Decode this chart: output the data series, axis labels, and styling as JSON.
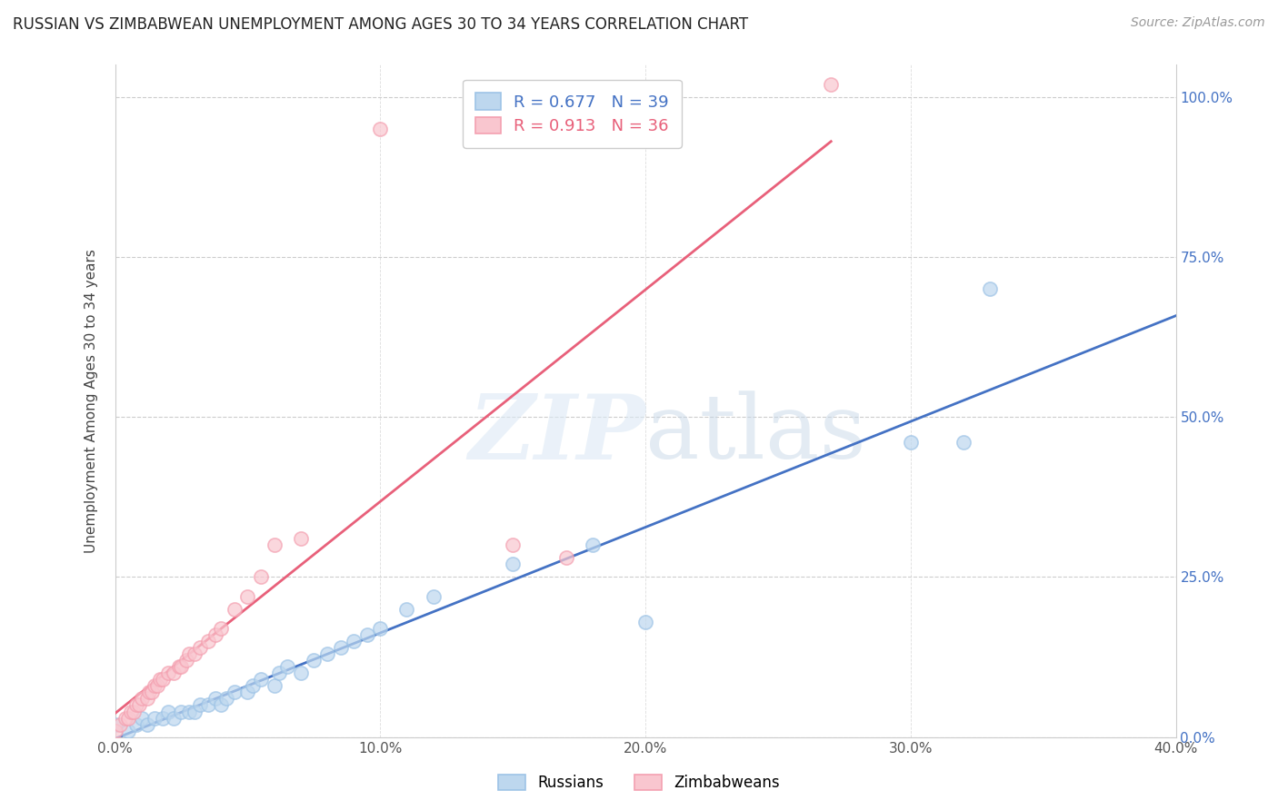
{
  "title": "RUSSIAN VS ZIMBABWEAN UNEMPLOYMENT AMONG AGES 30 TO 34 YEARS CORRELATION CHART",
  "source": "Source: ZipAtlas.com",
  "ylabel": "Unemployment Among Ages 30 to 34 years",
  "background_color": "#ffffff",
  "watermark_zip": "ZIP",
  "watermark_atlas": "atlas",
  "xlim": [
    0.0,
    0.4
  ],
  "ylim": [
    0.0,
    1.05
  ],
  "xticks": [
    0.0,
    0.1,
    0.2,
    0.3,
    0.4
  ],
  "xtick_labels": [
    "0.0%",
    "10.0%",
    "20.0%",
    "30.0%",
    "40.0%"
  ],
  "yticks": [
    0.0,
    0.25,
    0.5,
    0.75,
    1.0
  ],
  "ytick_labels": [
    "0.0%",
    "25.0%",
    "50.0%",
    "75.0%",
    "100.0%"
  ],
  "russians_x": [
    0.0,
    0.005,
    0.008,
    0.01,
    0.012,
    0.015,
    0.018,
    0.02,
    0.022,
    0.025,
    0.028,
    0.03,
    0.032,
    0.035,
    0.038,
    0.04,
    0.042,
    0.045,
    0.05,
    0.052,
    0.055,
    0.06,
    0.062,
    0.065,
    0.07,
    0.075,
    0.08,
    0.085,
    0.09,
    0.095,
    0.1,
    0.11,
    0.12,
    0.15,
    0.18,
    0.2,
    0.3,
    0.32,
    0.33
  ],
  "russians_y": [
    0.02,
    0.01,
    0.02,
    0.03,
    0.02,
    0.03,
    0.03,
    0.04,
    0.03,
    0.04,
    0.04,
    0.04,
    0.05,
    0.05,
    0.06,
    0.05,
    0.06,
    0.07,
    0.07,
    0.08,
    0.09,
    0.08,
    0.1,
    0.11,
    0.1,
    0.12,
    0.13,
    0.14,
    0.15,
    0.16,
    0.17,
    0.2,
    0.22,
    0.27,
    0.3,
    0.18,
    0.46,
    0.46,
    0.7
  ],
  "zimbabweans_x": [
    0.0,
    0.002,
    0.004,
    0.005,
    0.006,
    0.007,
    0.008,
    0.009,
    0.01,
    0.012,
    0.013,
    0.014,
    0.015,
    0.016,
    0.017,
    0.018,
    0.02,
    0.022,
    0.024,
    0.025,
    0.027,
    0.028,
    0.03,
    0.032,
    0.035,
    0.038,
    0.04,
    0.045,
    0.05,
    0.055,
    0.06,
    0.07,
    0.1,
    0.15,
    0.17,
    0.27
  ],
  "zimbabweans_y": [
    0.01,
    0.02,
    0.03,
    0.03,
    0.04,
    0.04,
    0.05,
    0.05,
    0.06,
    0.06,
    0.07,
    0.07,
    0.08,
    0.08,
    0.09,
    0.09,
    0.1,
    0.1,
    0.11,
    0.11,
    0.12,
    0.13,
    0.13,
    0.14,
    0.15,
    0.16,
    0.17,
    0.2,
    0.22,
    0.25,
    0.3,
    0.31,
    0.95,
    0.3,
    0.28,
    1.02
  ],
  "russian_line_color": "#4472c4",
  "zimbabwean_line_color": "#e8607a",
  "russian_scatter_facecolor": "#bdd7ee",
  "russian_scatter_edgecolor": "#9dc3e6",
  "zimbabwean_scatter_facecolor": "#f9c6cf",
  "zimbabwean_scatter_edgecolor": "#f4a0b0",
  "russian_R": 0.677,
  "russian_N": 39,
  "zimbabwean_R": 0.913,
  "zimbabwean_N": 36,
  "legend_R_color_russian": "#4472c4",
  "legend_N_color_russian": "#4472c4",
  "legend_R_color_zimbabwean": "#e8607a",
  "legend_N_color_zimbabwean": "#e8607a"
}
